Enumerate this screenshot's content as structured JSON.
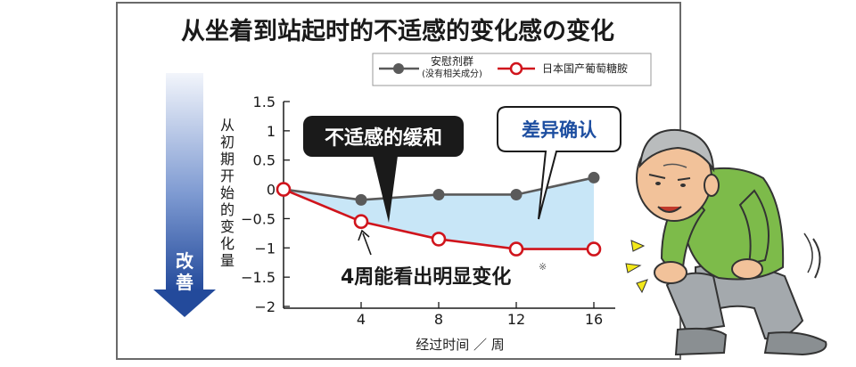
{
  "chart_data": {
    "type": "line",
    "title": "从坐着到站起时的不适感的变化感の变化",
    "xlabel": "经过时间 ／ 周",
    "ylabel": "从初期开始的变化量",
    "x_ticks": [
      "4",
      "8",
      "12",
      "16"
    ],
    "y_ticks": [
      "1.5",
      "1",
      "0.5",
      "0",
      "−0.5",
      "−1",
      "−1.5",
      "−2"
    ],
    "xlim": [
      0,
      16
    ],
    "ylim": [
      -2,
      1.5
    ],
    "series": [
      {
        "name": "安慰剂群\n(没有相关成分)",
        "color": "#5a5a5a",
        "x": [
          0,
          4,
          8,
          12,
          16
        ],
        "values": [
          0,
          -0.18,
          -0.09,
          -0.09,
          0.2
        ]
      },
      {
        "name": "日本国产葡萄糖胺",
        "color": "#d0141c",
        "x": [
          0,
          4,
          8,
          12,
          16
        ],
        "values": [
          0,
          -0.55,
          -0.85,
          -1.02,
          -1.02
        ]
      }
    ],
    "legend_position": "top",
    "grid": false
  },
  "annotations": {
    "relief_label": "不适感的缓和",
    "difference_label": "差异确认",
    "four_weeks_text": "4周能看出明显变化",
    "footnote_mark": "※",
    "improve_label": "改善"
  },
  "colors": {
    "fill_area": "#c8e6f7",
    "placebo": "#5a5a5a",
    "glucosamine": "#d0141c",
    "arrow_top": "#eef2fa",
    "arrow_bottom": "#2a4f9f",
    "bubble_border": "#1a1a1a",
    "difference_text": "#1d4ea0"
  },
  "illustration": {
    "icon": "elderly-man-kneeling-icon"
  }
}
